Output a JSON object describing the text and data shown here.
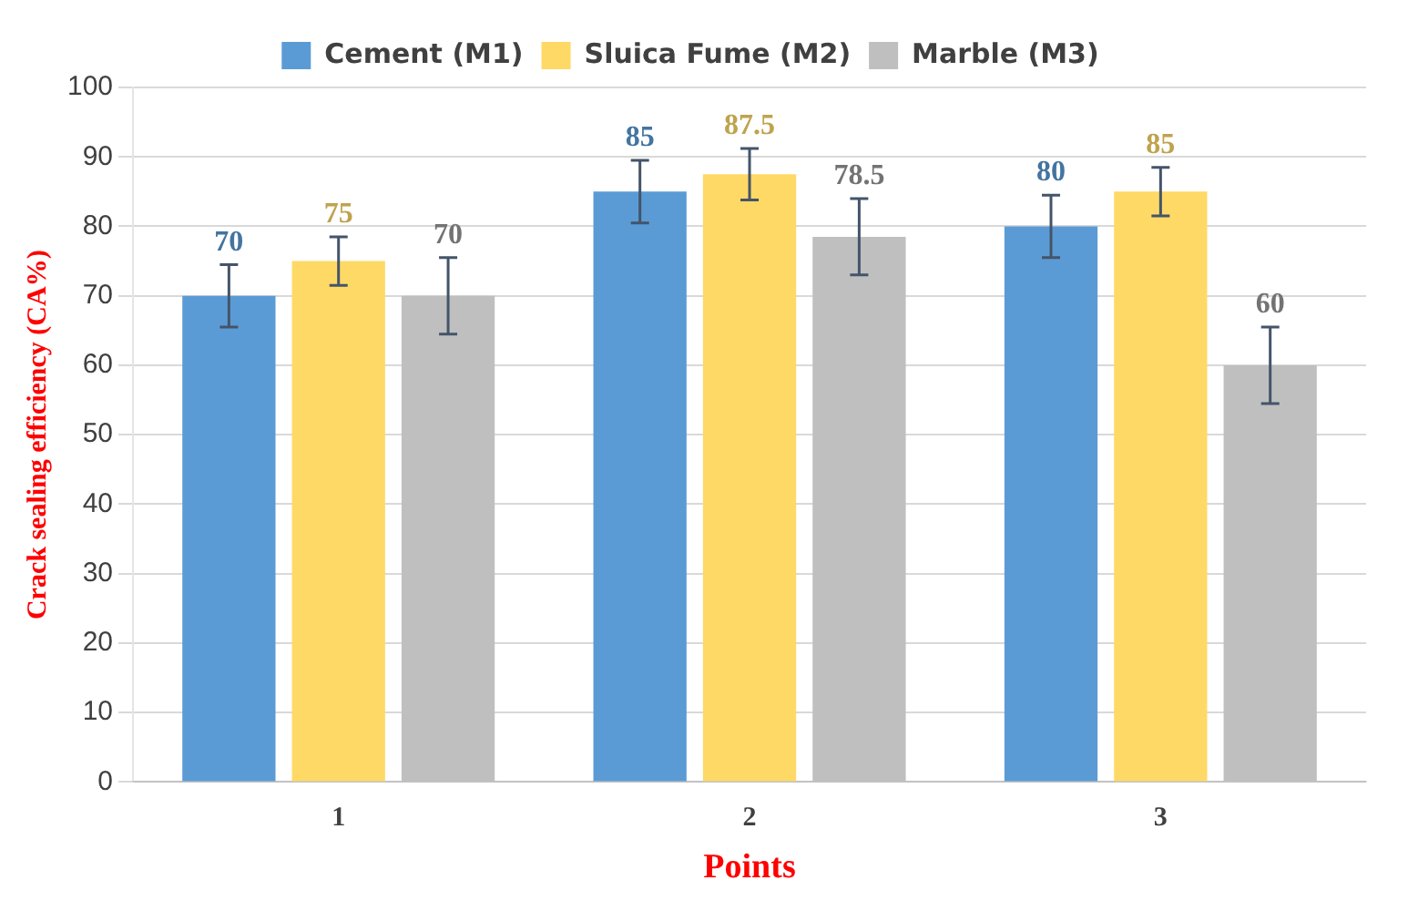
{
  "chart_data": {
    "type": "bar",
    "xlabel": "Points",
    "ylabel": "Crack sealing efficiency (CA%)",
    "categories": [
      "1",
      "2",
      "3"
    ],
    "series": [
      {
        "name": "Cement (M1)",
        "color": "#5b9bd5",
        "values": [
          70,
          85,
          80
        ],
        "errors": [
          4.5,
          4.5,
          4.5
        ]
      },
      {
        "name": "Sluica Fume (M2)",
        "color": "#ffd966",
        "values": [
          75,
          87.5,
          85
        ],
        "errors": [
          3.5,
          3.7,
          3.5
        ]
      },
      {
        "name": "Marble (M3)",
        "color": "#bfbfbf",
        "values": [
          70,
          78.5,
          60
        ],
        "errors": [
          5.5,
          5.5,
          5.5
        ]
      }
    ],
    "ylim": [
      0,
      100
    ],
    "yticks": [
      0,
      10,
      20,
      30,
      40,
      50,
      60,
      70,
      80,
      90,
      100
    ],
    "grid": "y",
    "legend": "top",
    "data_labels": true
  }
}
